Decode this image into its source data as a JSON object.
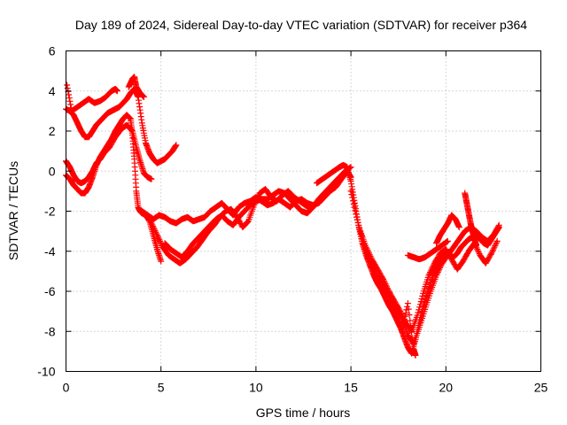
{
  "chart_data": {
    "type": "scatter",
    "title": "Day 189 of 2024, Sidereal Day-to-day VTEC variation (SDTVAR) for receiver p364",
    "xlabel": "GPS time / hours",
    "ylabel": "SDTVAR / TECUs",
    "xlim": [
      0,
      25
    ],
    "ylim": [
      -10,
      6
    ],
    "x_ticks": [
      0,
      5,
      10,
      15,
      20,
      25
    ],
    "y_ticks": [
      -10,
      -8,
      -6,
      -4,
      -2,
      0,
      2,
      4,
      6
    ],
    "grid": true,
    "marker": "+",
    "color": "#ff0000",
    "series": [
      {
        "x": [
          0.0,
          0.2,
          0.4,
          0.6,
          0.8,
          1.0,
          1.2,
          1.4,
          1.6,
          1.8,
          2.0,
          2.2,
          2.4,
          2.6,
          2.8,
          3.0,
          3.2,
          3.4,
          3.6,
          3.8,
          4.0,
          4.2,
          4.4,
          4.6,
          4.8,
          5.0,
          5.2,
          5.4,
          5.6,
          5.8
        ],
        "y": [
          3.1,
          3.0,
          2.8,
          2.4,
          2.0,
          1.7,
          1.7,
          2.0,
          2.3,
          2.5,
          2.7,
          2.9,
          3.0,
          3.1,
          3.2,
          3.4,
          3.6,
          3.9,
          4.1,
          3.7,
          2.4,
          1.4,
          0.9,
          0.6,
          0.4,
          0.5,
          0.6,
          0.8,
          1.0,
          1.3
        ]
      },
      {
        "x": [
          0.0,
          0.2,
          0.4,
          0.6,
          0.8,
          1.0,
          1.2,
          1.4,
          1.6,
          1.8,
          2.0,
          2.2,
          2.4,
          2.6,
          2.8,
          3.0,
          3.2,
          3.4,
          3.5,
          3.6,
          3.7,
          3.8,
          3.9,
          4.0,
          4.2,
          4.4,
          4.6,
          4.8,
          5.0
        ],
        "y": [
          -0.2,
          -0.4,
          -0.7,
          -0.9,
          -1.1,
          -1.1,
          -0.8,
          -0.3,
          0.3,
          0.7,
          1.0,
          1.3,
          1.6,
          2.0,
          2.3,
          2.6,
          2.8,
          2.6,
          1.8,
          0.6,
          -1.0,
          -1.8,
          -2.0,
          -2.1,
          -2.2,
          -2.5,
          -3.2,
          -3.9,
          -4.5
        ]
      },
      {
        "x": [
          0.05,
          0.3,
          0.6,
          0.9,
          1.2,
          1.5,
          1.8,
          2.1,
          2.4,
          2.6,
          2.7
        ],
        "y": [
          4.3,
          3.0,
          3.2,
          3.4,
          3.6,
          3.4,
          3.5,
          3.7,
          4.0,
          4.1,
          4.0
        ]
      },
      {
        "x": [
          0.0,
          0.2,
          0.4,
          0.6,
          0.8,
          1.0,
          1.2,
          1.4,
          1.6,
          1.8,
          2.0,
          2.3,
          2.6,
          2.9,
          3.2,
          3.5,
          3.7,
          3.9,
          4.1,
          4.3,
          4.5
        ],
        "y": [
          0.5,
          0.2,
          -0.2,
          -0.5,
          -0.6,
          -0.5,
          -0.3,
          0.0,
          0.4,
          0.6,
          0.9,
          1.2,
          1.7,
          2.1,
          2.3,
          2.0,
          1.2,
          0.5,
          -0.1,
          -0.3,
          -0.4
        ]
      },
      {
        "x": [
          3.3,
          3.5,
          3.6,
          3.7,
          3.9,
          4.1
        ],
        "y": [
          4.2,
          4.6,
          4.7,
          4.2,
          3.9,
          3.7
        ]
      },
      {
        "x": [
          4.0,
          4.3,
          4.6,
          4.9,
          5.2,
          5.5,
          5.8,
          6.1,
          6.4,
          6.7,
          7.0,
          7.3,
          7.6,
          7.9,
          8.2,
          8.5,
          8.8,
          9.1,
          9.4,
          9.7,
          10.0,
          10.3,
          10.6,
          10.9,
          11.2,
          11.5,
          11.8,
          12.1,
          12.4,
          12.7,
          13.0,
          13.3,
          13.6,
          13.9,
          14.2,
          14.5,
          14.8,
          15.0
        ],
        "y": [
          -2.0,
          -2.2,
          -2.4,
          -2.2,
          -2.3,
          -2.5,
          -2.6,
          -2.4,
          -2.3,
          -2.5,
          -2.4,
          -2.3,
          -2.0,
          -1.8,
          -1.6,
          -1.9,
          -2.2,
          -1.8,
          -1.6,
          -1.5,
          -1.3,
          -1.5,
          -1.7,
          -1.6,
          -1.4,
          -1.6,
          -1.8,
          -1.5,
          -1.4,
          -1.6,
          -1.7,
          -1.6,
          -1.3,
          -1.0,
          -0.8,
          -0.4,
          0.0,
          -0.3
        ]
      },
      {
        "x": [
          4.5,
          4.8,
          5.1,
          5.4,
          5.7,
          6.0,
          6.3,
          6.6,
          6.9,
          7.2,
          7.5,
          7.8,
          8.1,
          8.4,
          8.7,
          9.0,
          9.3,
          9.6,
          9.9,
          10.2,
          10.5,
          10.8,
          11.1,
          11.4,
          11.7,
          12.0,
          12.3,
          12.6,
          12.9,
          13.2,
          13.5,
          13.8,
          14.1,
          14.4,
          14.7,
          15.0
        ],
        "y": [
          -2.6,
          -3.2,
          -3.8,
          -4.2,
          -4.4,
          -4.6,
          -4.4,
          -4.1,
          -3.8,
          -3.4,
          -3.0,
          -2.7,
          -2.3,
          -2.0,
          -1.9,
          -2.3,
          -2.8,
          -2.5,
          -1.7,
          -1.1,
          -0.9,
          -1.3,
          -1.5,
          -1.2,
          -1.0,
          -1.3,
          -1.5,
          -1.7,
          -1.9,
          -1.6,
          -1.2,
          -0.9,
          -0.6,
          -0.3,
          0.0,
          0.2
        ]
      },
      {
        "x": [
          5.2,
          5.5,
          5.8,
          6.1,
          6.4,
          6.7,
          7.0,
          7.3,
          7.6,
          7.9,
          8.2,
          8.5,
          8.8,
          9.1,
          9.4,
          9.7,
          10.0,
          10.3,
          10.6,
          10.9,
          11.2,
          11.5,
          11.8,
          12.1,
          12.4,
          12.7,
          13.0,
          13.3,
          13.6,
          13.9,
          14.2,
          14.5,
          14.8
        ],
        "y": [
          -3.6,
          -3.9,
          -4.1,
          -4.3,
          -4.0,
          -3.6,
          -3.3,
          -3.0,
          -2.7,
          -2.4,
          -2.2,
          -2.5,
          -2.7,
          -2.3,
          -2.0,
          -1.7,
          -1.5,
          -1.4,
          -1.4,
          -1.2,
          -1.0,
          -1.1,
          -1.4,
          -1.7,
          -2.0,
          -2.1,
          -1.8,
          -1.4,
          -1.1,
          -0.8,
          -0.5,
          -0.3,
          -0.1
        ]
      },
      {
        "x": [
          13.2,
          13.5,
          13.8,
          14.1,
          14.4,
          14.6,
          14.8,
          15.0,
          15.2,
          15.4,
          15.6,
          15.8,
          16.0,
          16.2,
          16.4,
          16.6,
          16.8,
          17.0,
          17.2,
          17.4,
          17.6,
          17.8,
          18.0,
          18.2,
          18.4,
          18.6,
          18.8,
          19.0,
          19.2,
          19.4,
          19.6,
          19.8,
          20.0,
          20.2,
          20.4,
          20.6,
          20.8,
          21.0,
          21.2,
          21.4,
          21.6,
          21.8,
          22.0,
          22.2,
          22.4,
          22.6,
          22.8
        ],
        "y": [
          -0.6,
          -0.4,
          -0.2,
          0.0,
          0.2,
          0.3,
          0.2,
          -0.5,
          -1.6,
          -2.7,
          -3.6,
          -4.2,
          -4.7,
          -5.2,
          -5.6,
          -5.9,
          -6.3,
          -6.7,
          -7.0,
          -7.4,
          -7.8,
          -8.3,
          -8.8,
          -9.1,
          -8.4,
          -7.6,
          -6.8,
          -6.2,
          -5.6,
          -5.0,
          -4.6,
          -4.3,
          -4.1,
          -4.2,
          -4.3,
          -4.1,
          -3.8,
          -3.6,
          -3.4,
          -3.3,
          -3.2,
          -3.4,
          -3.6,
          -3.7,
          -3.4,
          -3.1,
          -2.8
        ]
      },
      {
        "x": [
          15.0,
          15.3,
          15.6,
          15.9,
          16.2,
          16.5,
          16.8,
          17.1,
          17.4,
          17.7,
          18.0,
          18.3,
          18.6,
          18.9,
          19.2,
          19.5,
          19.8,
          20.1,
          20.4,
          20.7,
          21.0,
          21.3,
          21.6,
          21.9,
          22.2,
          22.5,
          22.8
        ],
        "y": [
          -1.0,
          -2.3,
          -3.4,
          -4.3,
          -4.9,
          -5.4,
          -5.9,
          -6.4,
          -6.9,
          -7.4,
          -8.2,
          -8.6,
          -7.8,
          -6.9,
          -6.0,
          -5.2,
          -4.6,
          -4.2,
          -3.8,
          -3.4,
          -3.0,
          -2.8,
          -3.0,
          -3.3,
          -3.5,
          -3.2,
          -2.7
        ]
      },
      {
        "x": [
          15.5,
          15.8,
          16.1,
          16.4,
          16.7,
          17.0,
          17.3,
          17.6,
          17.9,
          18.2,
          18.5,
          18.8,
          19.1,
          19.4,
          19.7,
          20.0,
          20.3,
          20.6,
          20.9,
          21.2,
          21.5,
          21.8,
          22.1,
          22.4,
          22.7
        ],
        "y": [
          -3.0,
          -3.8,
          -4.4,
          -4.9,
          -5.4,
          -6.0,
          -6.5,
          -7.0,
          -7.6,
          -8.0,
          -7.2,
          -6.1,
          -5.2,
          -4.6,
          -4.1,
          -3.9,
          -4.4,
          -4.9,
          -4.5,
          -4.0,
          -3.6,
          -4.2,
          -4.6,
          -4.1,
          -3.5
        ]
      },
      {
        "x": [
          18.0,
          18.3,
          18.6,
          18.9,
          19.2,
          19.5,
          19.8,
          20.1
        ],
        "y": [
          -4.2,
          -4.3,
          -4.4,
          -4.3,
          -4.1,
          -3.9,
          -3.7,
          -3.5
        ]
      },
      {
        "x": [
          19.5,
          19.7,
          19.9,
          20.1,
          20.3,
          20.5,
          20.7
        ],
        "y": [
          -3.6,
          -3.2,
          -2.9,
          -2.6,
          -2.2,
          -2.4,
          -2.8
        ]
      },
      {
        "x": [
          21.0,
          21.1,
          21.2,
          21.3,
          21.4,
          21.5,
          21.6
        ],
        "y": [
          -1.1,
          -1.6,
          -2.1,
          -2.6,
          -3.0,
          -3.4,
          -3.7
        ]
      },
      {
        "x": [
          17.1,
          17.4,
          17.7,
          18.0,
          18.3,
          18.4
        ],
        "y": [
          -6.6,
          -7.2,
          -7.9,
          -6.6,
          -8.9,
          -9.2
        ]
      }
    ]
  }
}
